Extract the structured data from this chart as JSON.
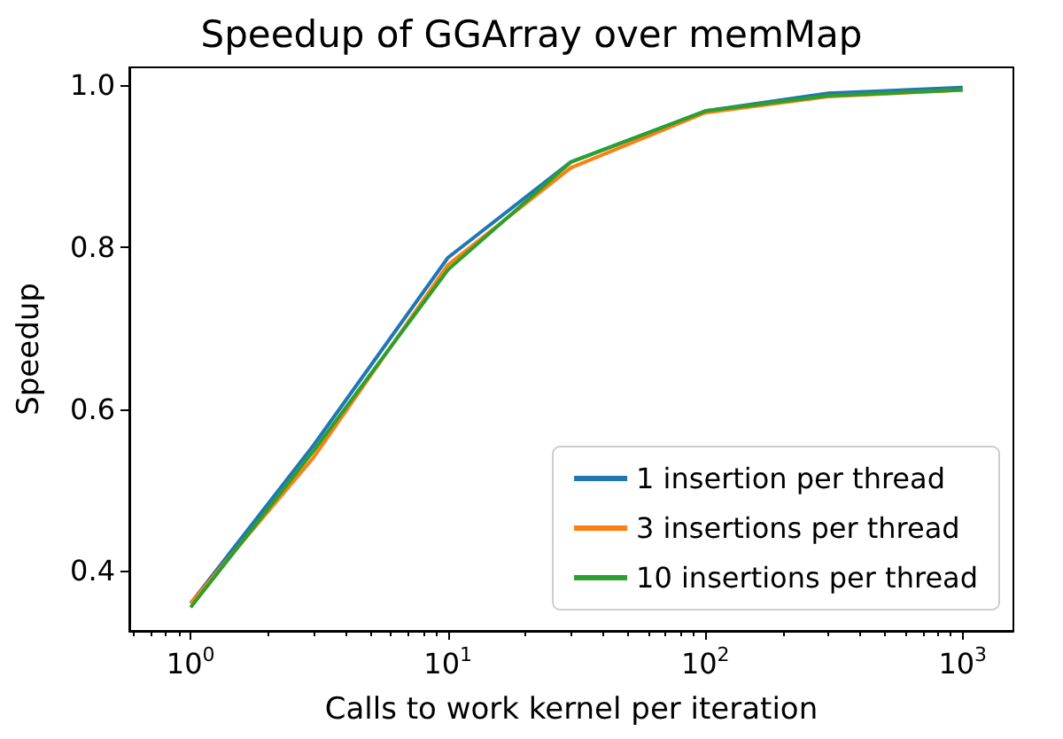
{
  "chart_data": {
    "type": "line",
    "title": "Speedup of GGArray over memMap",
    "xlabel": "Calls to work kernel per iteration",
    "ylabel": "Speedup",
    "log": "x",
    "x": [
      1,
      3,
      10,
      30,
      100,
      300,
      1000
    ],
    "series": [
      {
        "name": "1 insertion per thread",
        "color": "#1f77b4",
        "values": [
          0.36,
          0.555,
          0.787,
          0.905,
          0.968,
          0.99,
          0.997
        ]
      },
      {
        "name": "3 insertions per thread",
        "color": "#ff7f0e",
        "values": [
          0.36,
          0.54,
          0.778,
          0.898,
          0.966,
          0.986,
          0.994
        ]
      },
      {
        "name": "10 insertions per thread",
        "color": "#2ca02c",
        "values": [
          0.355,
          0.548,
          0.772,
          0.905,
          0.968,
          0.987,
          0.994
        ]
      }
    ],
    "xlim": [
      0.578,
      1574
    ],
    "ylim": [
      0.326,
      1.022
    ],
    "xticks": [
      {
        "value": 1,
        "label": "10$^{0}$"
      },
      {
        "value": 10,
        "label": "10$^{1}$"
      },
      {
        "value": 100,
        "label": "10$^{2}$"
      },
      {
        "value": 1000,
        "label": "10$^{3}$"
      }
    ],
    "yticks": [
      0.4,
      0.6,
      0.8,
      {
        "value": 1,
        "label": "1.0"
      }
    ],
    "grid": false,
    "legend": "bottom right",
    "marker": "none",
    "line_style": "solid"
  }
}
